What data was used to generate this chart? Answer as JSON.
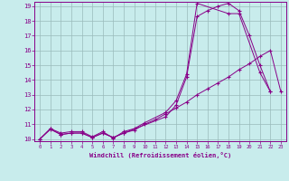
{
  "xlabel": "Windchill (Refroidissement éolien,°C)",
  "bg_color": "#c8ecec",
  "line_color": "#880088",
  "grid_color": "#99bbbb",
  "xmin": 0,
  "xmax": 23,
  "ymin": 10,
  "ymax": 19,
  "yticks": [
    10,
    11,
    12,
    13,
    14,
    15,
    16,
    17,
    18,
    19
  ],
  "xticks": [
    0,
    1,
    2,
    3,
    4,
    5,
    6,
    7,
    8,
    9,
    10,
    11,
    12,
    13,
    14,
    15,
    16,
    17,
    18,
    19,
    20,
    21,
    22,
    23
  ],
  "line1": {
    "x": [
      0,
      1,
      2,
      3,
      4,
      5,
      6,
      7,
      8,
      9,
      10,
      12,
      13,
      14,
      15,
      18,
      19,
      21,
      22
    ],
    "y": [
      10.0,
      10.7,
      10.4,
      10.5,
      10.5,
      10.15,
      10.5,
      10.05,
      10.5,
      10.7,
      11.1,
      11.8,
      12.6,
      14.4,
      19.2,
      18.5,
      18.5,
      14.5,
      13.2
    ]
  },
  "line2": {
    "x": [
      0,
      1,
      2,
      3,
      4,
      5,
      6,
      7,
      8,
      12,
      13,
      14,
      15,
      16,
      17,
      18,
      19,
      20,
      21,
      22
    ],
    "y": [
      10.0,
      10.7,
      10.3,
      10.4,
      10.4,
      10.1,
      10.4,
      10.1,
      10.4,
      11.5,
      12.3,
      14.2,
      18.3,
      18.7,
      19.0,
      19.2,
      18.7,
      17.0,
      15.0,
      13.2
    ]
  },
  "line3": {
    "x": [
      0,
      1,
      2,
      3,
      4,
      5,
      6,
      7,
      8,
      9,
      10,
      11,
      12,
      13,
      14,
      15,
      16,
      17,
      18,
      19,
      20,
      21,
      22,
      23
    ],
    "y": [
      10.0,
      10.65,
      10.3,
      10.4,
      10.4,
      10.1,
      10.4,
      10.1,
      10.4,
      10.6,
      11.0,
      11.3,
      11.7,
      12.1,
      12.5,
      13.0,
      13.4,
      13.8,
      14.2,
      14.7,
      15.1,
      15.6,
      16.0,
      13.2
    ]
  }
}
